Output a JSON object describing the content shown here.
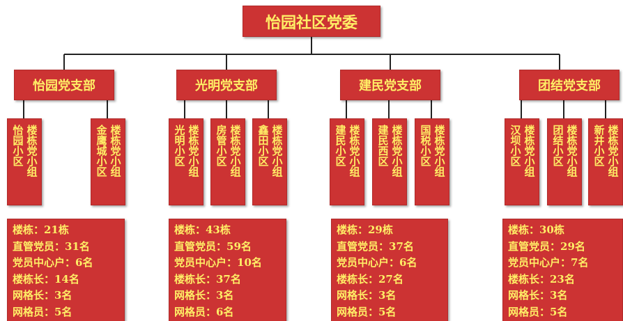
{
  "root": {
    "title": "怡园社区党委"
  },
  "branches": [
    {
      "name": "怡园党支部",
      "groups": [
        {
          "lines": [
            "楼栋党小组",
            "怡园小区"
          ]
        },
        {
          "lines": [
            "楼栋党小组",
            "金鹰城小区"
          ]
        }
      ],
      "stats": [
        "楼栋：21栋",
        "直管党员：31名",
        "党员中心户：6名",
        "楼栋长：14名",
        "网格长：3名",
        "网格员：5名"
      ]
    },
    {
      "name": "光明党支部",
      "groups": [
        {
          "lines": [
            "楼栋党小组",
            "光明小区"
          ]
        },
        {
          "lines": [
            "楼栋党小组",
            "房管小区"
          ]
        },
        {
          "lines": [
            "楼栋党小组",
            "鑫田小区"
          ]
        }
      ],
      "stats": [
        "楼栋：43栋",
        "直管党员：59名",
        "党员中心户：10名",
        "楼栋长：37名",
        "网格长：3名",
        "网格员：6名"
      ]
    },
    {
      "name": "建民党支部",
      "groups": [
        {
          "lines": [
            "楼栋党小组",
            "建民小区"
          ]
        },
        {
          "lines": [
            "楼栋党小组",
            "建民西区"
          ]
        },
        {
          "lines": [
            "楼栋党小组",
            "国税小区"
          ]
        }
      ],
      "stats": [
        "楼栋：29栋",
        "直管党员：37名",
        "党员中心户：6名",
        "楼栋长：27名",
        "网格长：3名",
        "网格员：5名"
      ]
    },
    {
      "name": "团结党支部",
      "groups": [
        {
          "lines": [
            "楼栋党小组",
            "汉坝小区"
          ]
        },
        {
          "lines": [
            "楼栋党小组",
            "团结小区"
          ]
        },
        {
          "lines": [
            "楼栋党小组",
            "新井小区"
          ]
        }
      ],
      "stats": [
        "楼栋：30栋",
        "直管党员：29名",
        "党员中心户：7名",
        "楼栋长：23名",
        "网格长：3名",
        "网格员：5名"
      ]
    }
  ]
}
